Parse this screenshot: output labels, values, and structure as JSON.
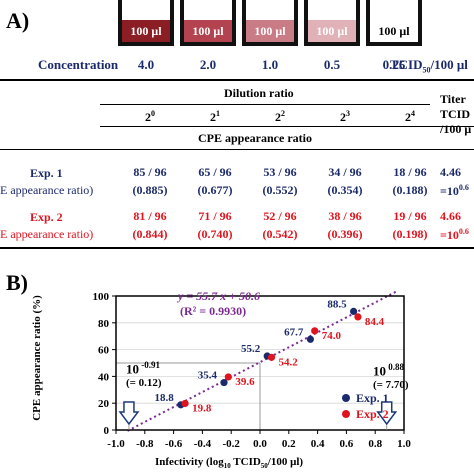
{
  "panel_a": {
    "label": "A)",
    "wells": [
      {
        "text": "100 μl",
        "color": "#8b1d24",
        "text_color": "#ffffff"
      },
      {
        "text": "100 μl",
        "color": "#b3434e",
        "text_color": "#ffffff"
      },
      {
        "text": "100 μl",
        "color": "#c97b86",
        "text_color": "#ffffff"
      },
      {
        "text": "100 μl",
        "color": "#e1b1b8",
        "text_color": "#ffffff"
      },
      {
        "text": "100 μl",
        "color": "#ffffff",
        "text_color": "#000000"
      }
    ],
    "concentration_label": "Concentration",
    "concentrations": [
      "4.0",
      "2.0",
      "1.0",
      "0.5",
      "0.25"
    ],
    "tcid_unit": "TCID",
    "tcid_sub": "50",
    "tcid_tail": "/100 μl",
    "dilution_header": "Dilution ratio",
    "titer_header_1": "Titer",
    "titer_header_2": "TCID",
    "titer_header_3": "/100 μ",
    "dilution_bases": [
      "2",
      "2",
      "2",
      "2",
      "2"
    ],
    "dilution_exps": [
      "0",
      "1",
      "2",
      "3",
      "4"
    ],
    "cpe_header": "CPE appearance ratio",
    "rows": [
      {
        "name": "Exp. 1",
        "sub": "E appearance ratio)",
        "fractions": [
          "85 / 96",
          "65 / 96",
          "53 / 96",
          "34 / 96",
          "18 / 96"
        ],
        "ratios": [
          "(0.885)",
          "(0.677)",
          "(0.552)",
          "(0.354)",
          "(0.188)"
        ],
        "titer": "4.46",
        "titer_sub": "=10",
        "titer_exp": "0.6"
      },
      {
        "name": "Exp. 2",
        "sub": "E appearance ratio)",
        "fractions": [
          "81 / 96",
          "71 / 96",
          "52 / 96",
          "38 / 96",
          "19 / 96"
        ],
        "ratios": [
          "(0.844)",
          "(0.740)",
          "(0.542)",
          "(0.396)",
          "(0.198)"
        ],
        "titer": "4.66",
        "titer_sub": "=10",
        "titer_exp": "0.6"
      }
    ]
  },
  "panel_b": {
    "label": "B)",
    "equation": "y = 55.7 x + 50.6",
    "r2": "(R² = 0.9930)",
    "left_note": {
      "base": "10",
      "exp": " -0.91",
      "paren": "(= 0.12)"
    },
    "right_note": {
      "base": "10",
      "exp": " 0.88",
      "paren": "(= 7.70)"
    }
  },
  "chart_data": {
    "type": "scatter",
    "xlabel_main": "Infectivity (log",
    "xlabel_sub1": "10",
    "xlabel_mid": " TCID",
    "xlabel_sub2": "50",
    "xlabel_end": "/100 μl)",
    "ylabel": "CPE appearance ratio (%)",
    "xlim": [
      -1.0,
      1.0
    ],
    "ylim": [
      0,
      100
    ],
    "xticks": [
      "-1.0",
      "-0.8",
      "-0.6",
      "-0.4",
      "-0.2",
      "0.0",
      "0.2",
      "0.4",
      "0.6",
      "0.8",
      "1.0"
    ],
    "yticks": [
      "0",
      "20",
      "40",
      "60",
      "80",
      "100"
    ],
    "series": [
      {
        "name": "Exp. 1",
        "color": "#1b2a6b",
        "x": [
          -0.55,
          -0.25,
          0.05,
          0.35,
          0.65
        ],
        "y": [
          18.8,
          35.4,
          55.2,
          67.7,
          88.5
        ],
        "labels": [
          "18.8",
          "35.4",
          "55.2",
          "67.7",
          "88.5"
        ]
      },
      {
        "name": "Exp. 2",
        "color": "#e0141e",
        "x": [
          -0.52,
          -0.22,
          0.08,
          0.38,
          0.68
        ],
        "y": [
          19.8,
          39.6,
          54.2,
          74.0,
          84.4
        ],
        "labels": [
          "19.8",
          "39.6",
          "54.2",
          "74.0",
          "84.4"
        ]
      }
    ],
    "fit_line": {
      "slope": 55.7,
      "intercept": 50.6,
      "color": "#7b2a8f"
    },
    "legend_position": "lower-right"
  }
}
